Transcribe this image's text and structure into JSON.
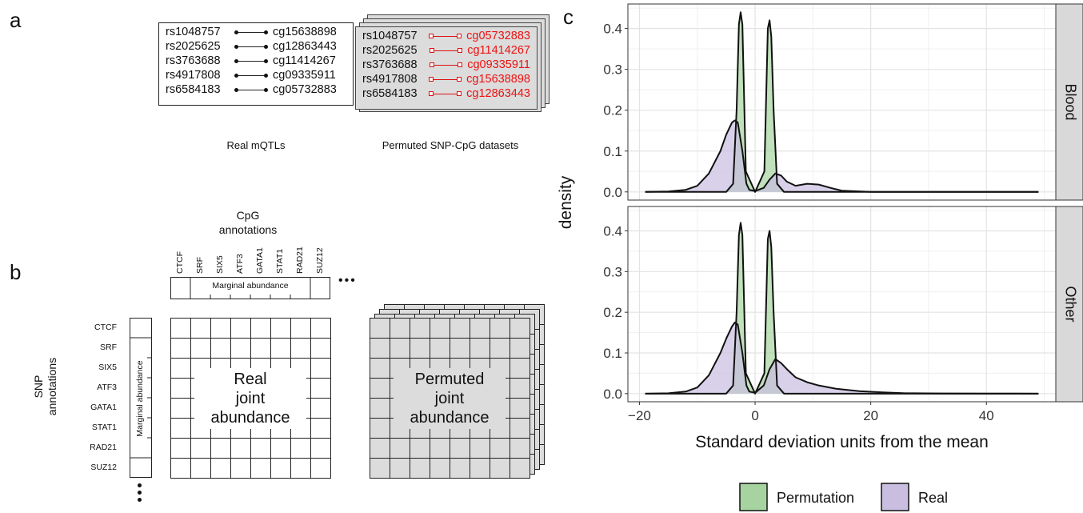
{
  "panel_a": {
    "label": "a",
    "real_pairs": [
      {
        "snp": "rs1048757",
        "cpg": "cg15638898"
      },
      {
        "snp": "rs2025625",
        "cpg": "cg12863443"
      },
      {
        "snp": "rs3763688",
        "cpg": "cg11414267"
      },
      {
        "snp": "rs4917808",
        "cpg": "cg09335911"
      },
      {
        "snp": "rs6584183",
        "cpg": "cg05732883"
      }
    ],
    "permuted_pairs": [
      {
        "snp": "rs1048757",
        "cpg": "cg05732883"
      },
      {
        "snp": "rs2025625",
        "cpg": "cg11414267"
      },
      {
        "snp": "rs3763688",
        "cpg": "cg09335911"
      },
      {
        "snp": "rs4917808",
        "cpg": "cg15638898"
      },
      {
        "snp": "rs6584183",
        "cpg": "cg12863443"
      }
    ],
    "real_caption": "Real mQTLs",
    "permuted_caption": "Permuted SNP-CpG datasets"
  },
  "panel_b": {
    "label": "b",
    "cpg_title_line1": "CpG",
    "cpg_title_line2": "annotations",
    "snp_title_line1": "SNP",
    "snp_title_line2": "annotations",
    "annotations": [
      "CTCF",
      "SRF",
      "SIX5",
      "ATF3",
      "GATA1",
      "STAT1",
      "RAD21",
      "SUZ12"
    ],
    "marginal_label": "Marginal abundance",
    "real_grid_lines": [
      "Real",
      "joint",
      "abundance"
    ],
    "permuted_grid_lines": [
      "Permuted",
      "joint",
      "abundance"
    ],
    "ellipsis": "•••",
    "colors": {
      "grid_fill": "#dcdcdc"
    }
  },
  "panel_c": {
    "label": "c",
    "chart_data": {
      "type": "area",
      "ylabel": "density",
      "xlabel": "Standard deviation units from the mean",
      "xlim": [
        -22,
        52
      ],
      "ylim": [
        -0.02,
        0.46
      ],
      "x_ticks": [
        -20,
        0,
        20,
        40
      ],
      "x_tick_labels": [
        "−20",
        "0",
        "20",
        "40"
      ],
      "y_ticks": [
        0.0,
        0.1,
        0.2,
        0.3,
        0.4
      ],
      "y_tick_labels": [
        "0.0",
        "0.1",
        "0.2",
        "0.3",
        "0.4"
      ],
      "grid": true,
      "legend_position": "bottom",
      "series_colors": {
        "Permutation": "#a7d3a0",
        "Real": "#c9bde0"
      },
      "legend": [
        "Permutation",
        "Real"
      ],
      "facets": [
        {
          "name": "Blood",
          "Permutation": {
            "x": [
              -19,
              -5,
              -3.8,
              -3.2,
              -2.8,
              -2.5,
              -2.2,
              -1.6,
              0,
              1.6,
              2.2,
              2.5,
              2.8,
              3.2,
              3.8,
              5,
              49
            ],
            "y": [
              0,
              0,
              0.02,
              0.2,
              0.41,
              0.44,
              0.41,
              0.05,
              0,
              0.05,
              0.4,
              0.42,
              0.38,
              0.2,
              0.02,
              0,
              0
            ]
          },
          "Real": {
            "x": [
              -19,
              -15,
              -12,
              -10,
              -8,
              -6,
              -5,
              -4,
              -3.5,
              -3,
              -2.2,
              -1.5,
              -1,
              0,
              1.5,
              2.5,
              3.5,
              4.5,
              5.5,
              7,
              9,
              11,
              13,
              15,
              20,
              49
            ],
            "y": [
              0,
              0.001,
              0.005,
              0.015,
              0.045,
              0.1,
              0.14,
              0.17,
              0.175,
              0.17,
              0.1,
              0.02,
              0.005,
              0.002,
              0.01,
              0.03,
              0.045,
              0.04,
              0.025,
              0.015,
              0.02,
              0.018,
              0.01,
              0.003,
              0,
              0
            ]
          }
        },
        {
          "name": "Other",
          "Permutation": {
            "x": [
              -19,
              -5,
              -3.8,
              -3.2,
              -2.8,
              -2.5,
              -2.2,
              -1.6,
              0,
              1.6,
              2.2,
              2.5,
              2.8,
              3.2,
              3.8,
              5,
              49
            ],
            "y": [
              0,
              0,
              0.02,
              0.2,
              0.39,
              0.42,
              0.39,
              0.05,
              0,
              0.05,
              0.38,
              0.4,
              0.36,
              0.2,
              0.02,
              0,
              0
            ]
          },
          "Real": {
            "x": [
              -19,
              -15,
              -12,
              -10,
              -8,
              -6,
              -5,
              -4,
              -3.5,
              -3,
              -2.2,
              -1.5,
              -1,
              0,
              1.5,
              2.5,
              3.5,
              4.5,
              5.5,
              7,
              9,
              11,
              14,
              18,
              22,
              26,
              32,
              40,
              49
            ],
            "y": [
              0,
              0.001,
              0.005,
              0.015,
              0.045,
              0.1,
              0.135,
              0.165,
              0.175,
              0.17,
              0.1,
              0.02,
              0.005,
              0.002,
              0.02,
              0.06,
              0.085,
              0.075,
              0.06,
              0.04,
              0.028,
              0.02,
              0.012,
              0.006,
              0.003,
              0.001,
              0.0005,
              0.0001,
              0
            ]
          }
        }
      ]
    }
  }
}
